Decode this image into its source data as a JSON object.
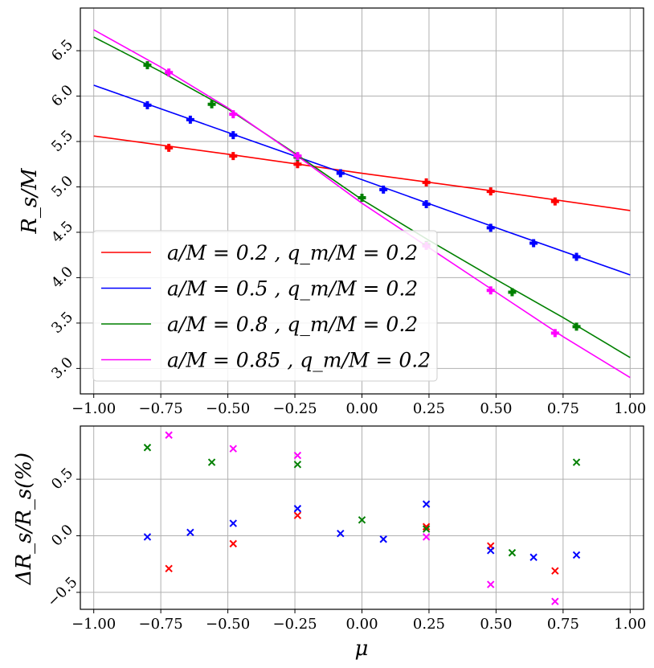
{
  "chart_data": [
    {
      "type": "line",
      "panel": "top",
      "xlabel": "",
      "ylabel": "R_s/M",
      "xlim": [
        -1.05,
        1.05
      ],
      "ylim": [
        2.72,
        6.97
      ],
      "xticks": [
        "−1.00",
        "−0.75",
        "−0.50",
        "−0.25",
        "0.00",
        "0.25",
        "0.50",
        "0.75",
        "1.00"
      ],
      "yticks": [
        "3.0",
        "3.5",
        "4.0",
        "4.5",
        "5.0",
        "5.5",
        "6.0",
        "6.5"
      ],
      "grid": true,
      "legend_position": "lower-left",
      "series": [
        {
          "name": "a/M = 0.2 , q_m/M = 0.2",
          "color": "#ff0000",
          "curve_x": [
            -1.0,
            -0.5,
            0.0,
            0.5,
            1.0
          ],
          "curve_y": [
            5.56,
            5.36,
            5.15,
            4.95,
            4.74
          ],
          "points_x": [
            -0.72,
            -0.48,
            -0.24,
            0.24,
            0.48,
            0.72
          ],
          "points_y": [
            5.43,
            5.34,
            5.25,
            5.05,
            4.95,
            4.84
          ]
        },
        {
          "name": "a/M = 0.5 , q_m/M = 0.2",
          "color": "#0000ff",
          "curve_x": [
            -1.0,
            -0.5,
            0.0,
            0.5,
            1.0
          ],
          "curve_y": [
            6.12,
            5.6,
            5.08,
            4.55,
            4.03
          ],
          "points_x": [
            -0.8,
            -0.64,
            -0.48,
            -0.24,
            -0.08,
            0.08,
            0.24,
            0.48,
            0.64,
            0.8
          ],
          "points_y": [
            5.9,
            5.74,
            5.57,
            5.33,
            5.15,
            4.97,
            4.81,
            4.55,
            4.38,
            4.23
          ]
        },
        {
          "name": "a/M = 0.8 , q_m/M = 0.2",
          "color": "#008000",
          "curve_x": [
            -1.0,
            -0.75,
            -0.5,
            -0.25,
            0.0,
            0.25,
            0.5,
            0.75,
            1.0
          ],
          "curve_y": [
            6.65,
            6.27,
            5.86,
            5.37,
            4.86,
            4.41,
            3.98,
            3.56,
            3.12
          ],
          "points_x": [
            -0.8,
            -0.56,
            -0.24,
            0.0,
            0.24,
            0.56,
            0.8
          ],
          "points_y": [
            6.34,
            5.91,
            5.33,
            4.88,
            4.36,
            3.84,
            3.46
          ]
        },
        {
          "name": "a/M = 0.85 , q_m/M = 0.2",
          "color": "#ff00ff",
          "curve_x": [
            -1.0,
            -0.75,
            -0.5,
            -0.25,
            0.0,
            0.25,
            0.5,
            0.75,
            1.0
          ],
          "curve_y": [
            6.73,
            6.32,
            5.87,
            5.36,
            4.82,
            4.33,
            3.84,
            3.35,
            2.9
          ],
          "points_x": [
            -0.72,
            -0.48,
            -0.24,
            0.24,
            0.48,
            0.72
          ],
          "points_y": [
            6.26,
            5.8,
            5.34,
            4.35,
            3.86,
            3.39
          ]
        }
      ]
    },
    {
      "type": "scatter",
      "panel": "bottom",
      "xlabel": "μ",
      "ylabel": "ΔR_s/R_s(%)",
      "xlim": [
        -1.05,
        1.05
      ],
      "ylim": [
        -0.65,
        0.97
      ],
      "xticks": [
        "−1.00",
        "−0.75",
        "−0.50",
        "−0.25",
        "0.00",
        "0.25",
        "0.50",
        "0.75",
        "1.00"
      ],
      "yticks": [
        "−0.5",
        "0.0",
        "0.5"
      ],
      "grid": true,
      "series": [
        {
          "name": "a/M = 0.2",
          "color": "#ff0000",
          "x": [
            -0.72,
            -0.48,
            -0.24,
            0.24,
            0.48,
            0.72
          ],
          "y": [
            -0.29,
            -0.07,
            0.18,
            0.08,
            -0.09,
            -0.31
          ]
        },
        {
          "name": "a/M = 0.5",
          "color": "#0000ff",
          "x": [
            -0.8,
            -0.64,
            -0.48,
            -0.24,
            -0.08,
            0.08,
            0.24,
            0.48,
            0.64,
            0.8
          ],
          "y": [
            -0.01,
            0.03,
            0.11,
            0.24,
            0.02,
            -0.03,
            0.28,
            -0.13,
            -0.19,
            -0.17
          ]
        },
        {
          "name": "a/M = 0.8",
          "color": "#008000",
          "x": [
            -0.8,
            -0.56,
            -0.24,
            0.0,
            0.24,
            0.56,
            0.8
          ],
          "y": [
            0.78,
            0.65,
            0.63,
            0.14,
            0.06,
            -0.15,
            0.65
          ]
        },
        {
          "name": "a/M = 0.85",
          "color": "#ff00ff",
          "x": [
            -0.72,
            -0.48,
            -0.24,
            0.24,
            0.48,
            0.72
          ],
          "y": [
            0.89,
            0.77,
            0.71,
            -0.01,
            -0.43,
            -0.58
          ]
        }
      ]
    }
  ]
}
